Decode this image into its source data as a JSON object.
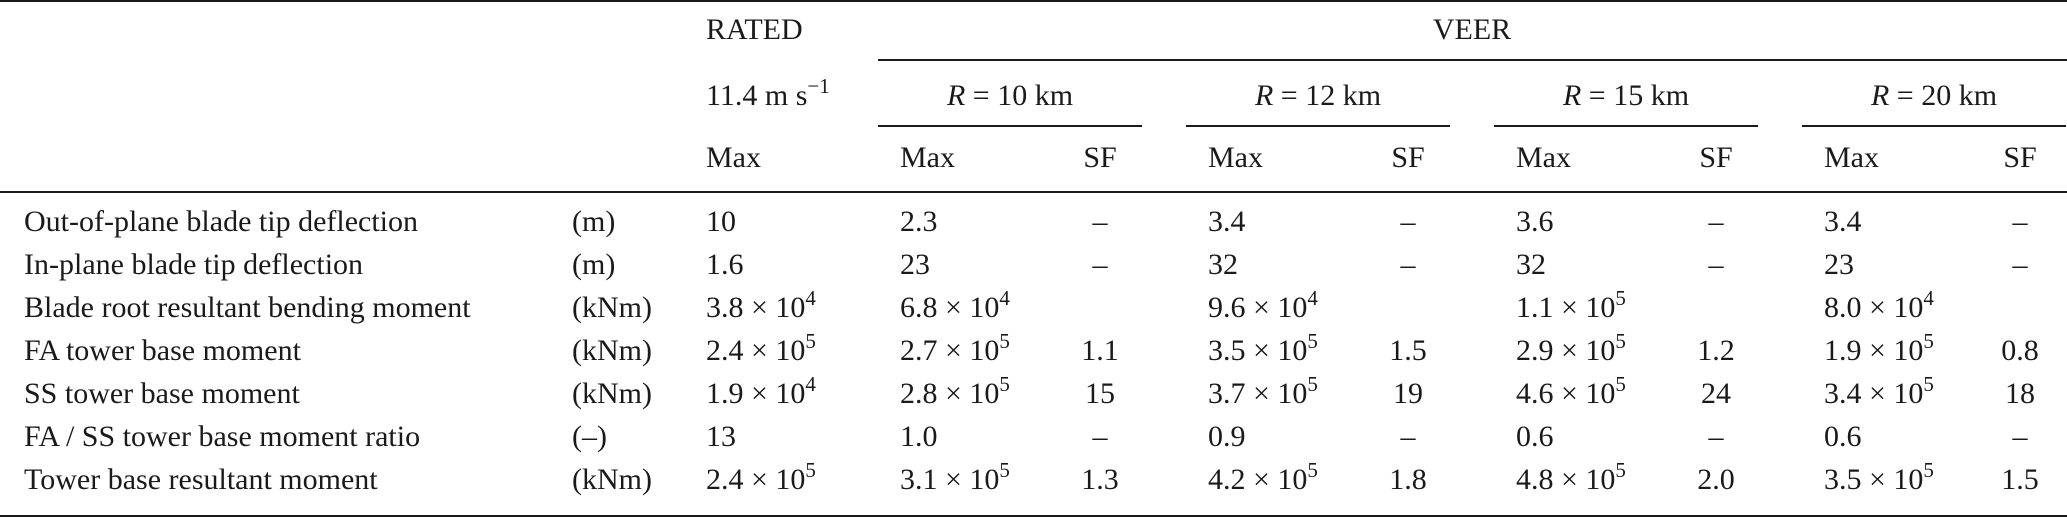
{
  "header": {
    "rated": "RATED",
    "veer": "VEER",
    "rated_speed": {
      "base": "11.4 m s",
      "exp": "−1"
    },
    "radius_sym": "R",
    "radius_sep": " = ",
    "radii": [
      "10 km",
      "12 km",
      "15 km",
      "20 km"
    ],
    "max": "Max",
    "sf": "SF"
  },
  "rows": [
    {
      "label": "Out-of-plane blade tip deflection",
      "unit": "(m)",
      "rated": {
        "base": "10",
        "exp": ""
      },
      "veer": [
        {
          "max": {
            "base": "2.3",
            "exp": ""
          },
          "sf": "–"
        },
        {
          "max": {
            "base": "3.4",
            "exp": ""
          },
          "sf": "–"
        },
        {
          "max": {
            "base": "3.6",
            "exp": ""
          },
          "sf": "–"
        },
        {
          "max": {
            "base": "3.4",
            "exp": ""
          },
          "sf": "–"
        }
      ]
    },
    {
      "label": "In-plane blade tip deflection",
      "unit": "(m)",
      "rated": {
        "base": "1.6",
        "exp": ""
      },
      "veer": [
        {
          "max": {
            "base": "23",
            "exp": ""
          },
          "sf": "–"
        },
        {
          "max": {
            "base": "32",
            "exp": ""
          },
          "sf": "–"
        },
        {
          "max": {
            "base": "32",
            "exp": ""
          },
          "sf": "–"
        },
        {
          "max": {
            "base": "23",
            "exp": ""
          },
          "sf": "–"
        }
      ]
    },
    {
      "label": "Blade root resultant bending moment",
      "unit": "(kNm)",
      "rated": {
        "base": "3.8 × 10",
        "exp": "4"
      },
      "veer": [
        {
          "max": {
            "base": "6.8 × 10",
            "exp": "4"
          },
          "sf": ""
        },
        {
          "max": {
            "base": "9.6 × 10",
            "exp": "4"
          },
          "sf": ""
        },
        {
          "max": {
            "base": "1.1 × 10",
            "exp": "5"
          },
          "sf": ""
        },
        {
          "max": {
            "base": "8.0 × 10",
            "exp": "4"
          },
          "sf": ""
        }
      ]
    },
    {
      "label": "FA tower base moment",
      "unit": "(kNm)",
      "rated": {
        "base": "2.4 × 10",
        "exp": "5"
      },
      "veer": [
        {
          "max": {
            "base": "2.7 × 10",
            "exp": "5"
          },
          "sf": "1.1"
        },
        {
          "max": {
            "base": "3.5 × 10",
            "exp": "5"
          },
          "sf": "1.5"
        },
        {
          "max": {
            "base": "2.9 × 10",
            "exp": "5"
          },
          "sf": "1.2"
        },
        {
          "max": {
            "base": "1.9 × 10",
            "exp": "5"
          },
          "sf": "0.8"
        }
      ]
    },
    {
      "label": "SS tower base moment",
      "unit": "(kNm)",
      "rated": {
        "base": "1.9 × 10",
        "exp": "4"
      },
      "veer": [
        {
          "max": {
            "base": "2.8 × 10",
            "exp": "5"
          },
          "sf": "15"
        },
        {
          "max": {
            "base": "3.7 × 10",
            "exp": "5"
          },
          "sf": "19"
        },
        {
          "max": {
            "base": "4.6 × 10",
            "exp": "5"
          },
          "sf": "24"
        },
        {
          "max": {
            "base": "3.4 × 10",
            "exp": "5"
          },
          "sf": "18"
        }
      ]
    },
    {
      "label": "FA / SS tower base moment ratio",
      "unit": "(–)",
      "rated": {
        "base": "13",
        "exp": ""
      },
      "veer": [
        {
          "max": {
            "base": "1.0",
            "exp": ""
          },
          "sf": "–"
        },
        {
          "max": {
            "base": "0.9",
            "exp": ""
          },
          "sf": "–"
        },
        {
          "max": {
            "base": "0.6",
            "exp": ""
          },
          "sf": "–"
        },
        {
          "max": {
            "base": "0.6",
            "exp": ""
          },
          "sf": "–"
        }
      ]
    },
    {
      "label": "Tower base resultant moment",
      "unit": "(kNm)",
      "rated": {
        "base": "2.4 × 10",
        "exp": "5"
      },
      "veer": [
        {
          "max": {
            "base": "3.1 × 10",
            "exp": "5"
          },
          "sf": "1.3"
        },
        {
          "max": {
            "base": "4.2 × 10",
            "exp": "5"
          },
          "sf": "1.8"
        },
        {
          "max": {
            "base": "4.8 × 10",
            "exp": "5"
          },
          "sf": "2.0"
        },
        {
          "max": {
            "base": "3.5 × 10",
            "exp": "5"
          },
          "sf": "1.5"
        }
      ]
    }
  ]
}
